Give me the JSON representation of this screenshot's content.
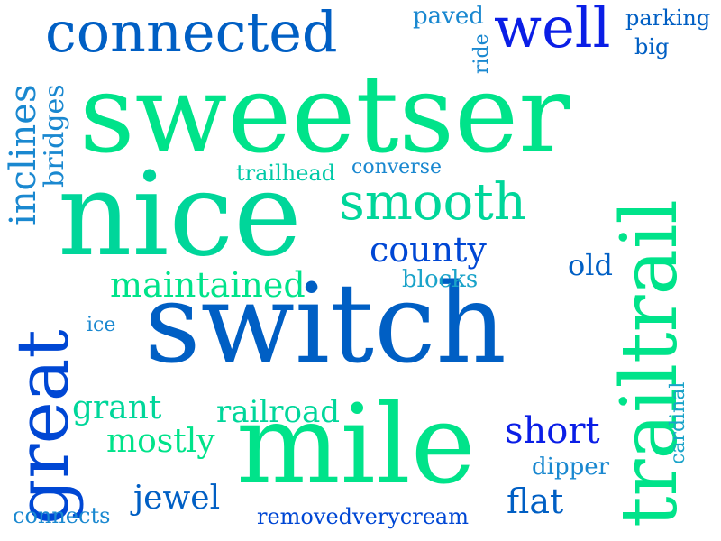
{
  "colors": {
    "background": "#ffffff",
    "palette": [
      "#00e38a",
      "#00c9a7",
      "#1aa3c9",
      "#005fc4",
      "#0047d4",
      "#0a1ee6"
    ]
  },
  "words": [
    {
      "text": "sweetser",
      "color": "#00e38a"
    },
    {
      "text": "switch",
      "color": "#005fc4"
    },
    {
      "text": "nice",
      "color": "#00d69a"
    },
    {
      "text": "mile",
      "color": "#00e38a"
    },
    {
      "text": "trailtrail",
      "color": "#00e38a"
    },
    {
      "text": "great",
      "color": "#0047d4"
    },
    {
      "text": "connected",
      "color": "#005fc4"
    },
    {
      "text": "well",
      "color": "#0a1ee6"
    },
    {
      "text": "smooth",
      "color": "#00d69a"
    },
    {
      "text": "county",
      "color": "#0047d4"
    },
    {
      "text": "maintained",
      "color": "#00e38a"
    },
    {
      "text": "inclines",
      "color": "#1a88d0"
    },
    {
      "text": "bridges",
      "color": "#1a88d0"
    },
    {
      "text": "paved",
      "color": "#1a88d0"
    },
    {
      "text": "ride",
      "color": "#1a88d0"
    },
    {
      "text": "parking",
      "color": "#005fc4"
    },
    {
      "text": "big",
      "color": "#005fc4"
    },
    {
      "text": "trailhead",
      "color": "#00c9a7"
    },
    {
      "text": "converse",
      "color": "#1a88d0"
    },
    {
      "text": "old",
      "color": "#005fc4"
    },
    {
      "text": "blocks",
      "color": "#1aa3c9"
    },
    {
      "text": "ice",
      "color": "#1a88d0"
    },
    {
      "text": "grant",
      "color": "#00d69a"
    },
    {
      "text": "railroad",
      "color": "#00d69a"
    },
    {
      "text": "mostly",
      "color": "#00e38a"
    },
    {
      "text": "short",
      "color": "#0a1ee6"
    },
    {
      "text": "cardinal",
      "color": "#1aa3c9"
    },
    {
      "text": "dipper",
      "color": "#1a88d0"
    },
    {
      "text": "jewel",
      "color": "#005fc4"
    },
    {
      "text": "flat",
      "color": "#005fc4"
    },
    {
      "text": "connects",
      "color": "#1a88d0"
    },
    {
      "text": "removedverycream",
      "color": "#0047d4"
    }
  ]
}
